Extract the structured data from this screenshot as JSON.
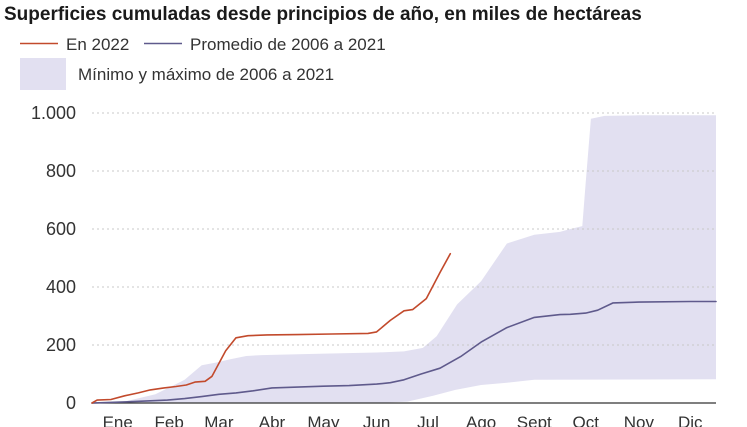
{
  "chart_data": {
    "type": "line",
    "title": "Superficies cumuladas desde principios de año, en miles de hectáreas",
    "xlabel": "",
    "ylabel": "",
    "x_unit": "day of year",
    "xlim": [
      1,
      365
    ],
    "ylim": [
      0,
      1000
    ],
    "y_ticks": [
      0,
      200,
      400,
      600,
      800,
      1000
    ],
    "y_tick_labels": [
      "0",
      "200",
      "400",
      "600",
      "800",
      "1.000"
    ],
    "months": [
      {
        "label": "Ene",
        "day": 16
      },
      {
        "label": "Feb",
        "day": 46
      },
      {
        "label": "Mar",
        "day": 75
      },
      {
        "label": "Abr",
        "day": 106
      },
      {
        "label": "May",
        "day": 136
      },
      {
        "label": "Jun",
        "day": 167
      },
      {
        "label": "Jul",
        "day": 197
      },
      {
        "label": "Ago",
        "day": 228
      },
      {
        "label": "Sept",
        "day": 259
      },
      {
        "label": "Oct",
        "day": 289
      },
      {
        "label": "Nov",
        "day": 320
      },
      {
        "label": "Dic",
        "day": 350
      }
    ],
    "grid": true,
    "legend": [
      {
        "label": "En 2022",
        "kind": "line",
        "color": "#c24a2c"
      },
      {
        "label": "Promedio de 2006 a 2021",
        "kind": "line",
        "color": "#5f5a8c"
      },
      {
        "label": "Mínimo y máximo de 2006 a 2021",
        "kind": "band",
        "color": "#e2e0f1"
      }
    ],
    "band": {
      "name": "Mínimo y máximo de 2006 a 2021",
      "upper": {
        "x": [
          1,
          20,
          38,
          55,
          65,
          74,
          81,
          91,
          100,
          121,
          150,
          167,
          183,
          194,
          202,
          214,
          228,
          243,
          259,
          274,
          280,
          287,
          289,
          292,
          300,
          320,
          350,
          365
        ],
        "y": [
          2,
          5,
          30,
          80,
          130,
          140,
          150,
          162,
          165,
          168,
          172,
          174,
          178,
          190,
          230,
          340,
          420,
          550,
          580,
          590,
          600,
          610,
          760,
          980,
          990,
          992,
          992,
          992
        ]
      },
      "lower": {
        "x": [
          1,
          100,
          170,
          185,
          200,
          213,
          228,
          243,
          259,
          365
        ],
        "y": [
          0,
          0,
          1,
          5,
          25,
          45,
          62,
          70,
          80,
          82
        ]
      }
    },
    "series": [
      {
        "name": "En 2022",
        "color": "#c24a2c",
        "x": [
          1,
          4,
          12,
          20,
          28,
          35,
          43,
          50,
          56,
          61,
          67,
          71,
          79,
          85,
          92,
          103,
          121,
          141,
          162,
          167,
          175,
          183,
          188,
          196,
          204,
          210
        ],
        "y": [
          0,
          10,
          12,
          25,
          35,
          45,
          52,
          57,
          62,
          72,
          75,
          92,
          180,
          225,
          232,
          235,
          236,
          238,
          240,
          245,
          285,
          318,
          322,
          360,
          450,
          515
        ]
      },
      {
        "name": "Promedio de 2006 a 2021",
        "color": "#5f5a8c",
        "x": [
          1,
          25,
          45,
          55,
          65,
          75,
          85,
          95,
          106,
          121,
          136,
          151,
          167,
          175,
          183,
          193,
          204,
          216,
          228,
          243,
          259,
          274,
          280,
          289,
          296,
          305,
          320,
          350,
          365
        ],
        "y": [
          0,
          5,
          10,
          15,
          22,
          30,
          35,
          42,
          52,
          55,
          58,
          60,
          65,
          70,
          80,
          100,
          120,
          160,
          210,
          260,
          295,
          305,
          306,
          310,
          320,
          345,
          348,
          350,
          350
        ]
      }
    ]
  }
}
